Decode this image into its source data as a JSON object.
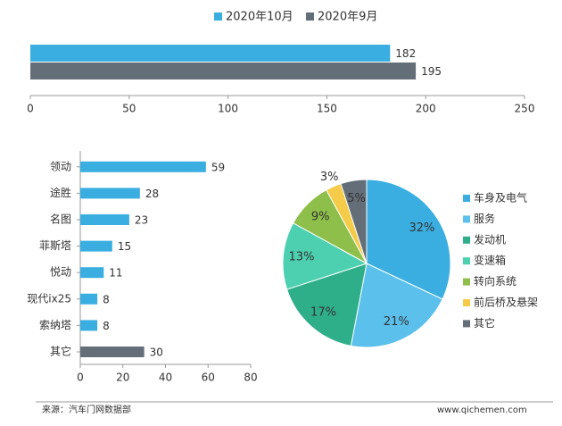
{
  "chart_data": [
    {
      "type": "bar",
      "orientation": "horizontal",
      "categories": [
        null
      ],
      "series": [
        {
          "name": "2020年10月",
          "color": "#3aaee0",
          "values": [
            182
          ]
        },
        {
          "name": "2020年9月",
          "color": "#646e78",
          "values": [
            195
          ]
        }
      ],
      "xlim": [
        0,
        250
      ],
      "xticks": [
        0,
        50,
        100,
        150,
        200,
        250
      ],
      "legend": "top"
    },
    {
      "type": "bar",
      "orientation": "horizontal",
      "categories": [
        "领动",
        "途胜",
        "名图",
        "菲斯塔",
        "悦动",
        "现代ix25",
        "索纳塔",
        "其它"
      ],
      "values": [
        59,
        28,
        23,
        15,
        11,
        8,
        8,
        30
      ],
      "colors": [
        "#3aaee0",
        "#3aaee0",
        "#3aaee0",
        "#3aaee0",
        "#3aaee0",
        "#3aaee0",
        "#3aaee0",
        "#646e78"
      ],
      "xlim": [
        0,
        80
      ],
      "xticks": [
        0,
        20,
        40,
        60,
        80
      ]
    },
    {
      "type": "pie",
      "categories": [
        "车身及电气",
        "服务",
        "发动机",
        "变速箱",
        "转向系统",
        "前后桥及悬架",
        "其它"
      ],
      "values": [
        32,
        21,
        17,
        13,
        9,
        3,
        5
      ],
      "value_labels": [
        "32%",
        "21%",
        "17%",
        "13%",
        "9%",
        "3%",
        "5%"
      ],
      "colors": [
        "#3aaee0",
        "#5bc0eb",
        "#2eaf8a",
        "#4dd0b0",
        "#8dbf4a",
        "#f5cc4a",
        "#646e78"
      ],
      "legend": "right"
    }
  ],
  "source": "来源：汽车门网数据部",
  "website": "www.qichemen.com"
}
